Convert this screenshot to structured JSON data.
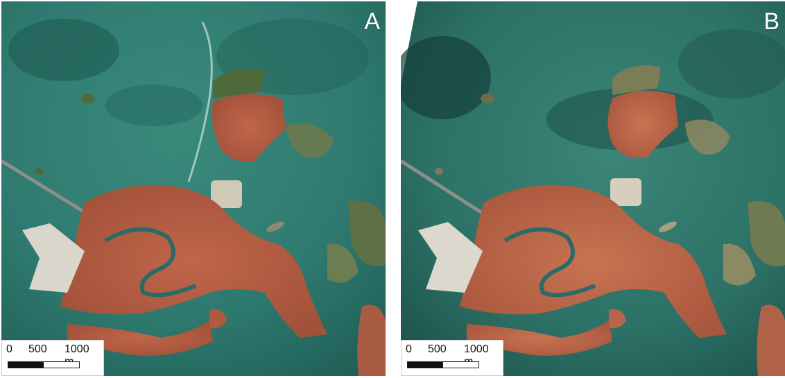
{
  "figure": {
    "panels": [
      {
        "label": "A",
        "scale_bar": {
          "ticks": [
            "0",
            "500",
            "1000 m"
          ]
        }
      },
      {
        "label": "B",
        "scale_bar": {
          "ticks": [
            "0",
            "500",
            "1000 m"
          ]
        }
      }
    ]
  },
  "colors": {
    "lagoon_water": "#2f7a70",
    "deep_water": "#1e5a52",
    "city_roofs": "#b3593f",
    "port_concrete": "#d9d6cc",
    "vegetation": "#4f6a3a",
    "canal": "#2a6b66"
  }
}
